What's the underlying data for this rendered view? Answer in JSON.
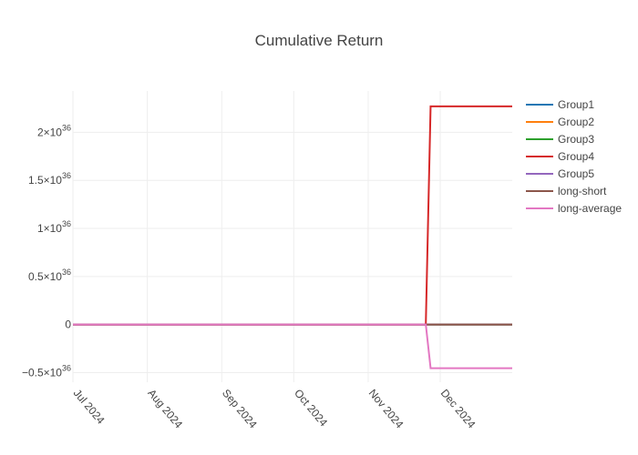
{
  "chart_data": {
    "type": "line",
    "title": "Cumulative Return",
    "xlabel": "",
    "ylabel": "",
    "x_ticks": [
      {
        "date": "2024-07-01",
        "label": "Jul 2024"
      },
      {
        "date": "2024-08-01",
        "label": "Aug 2024"
      },
      {
        "date": "2024-09-01",
        "label": "Sep 2024"
      },
      {
        "date": "2024-10-01",
        "label": "Oct 2024"
      },
      {
        "date": "2024-11-01",
        "label": "Nov 2024"
      },
      {
        "date": "2024-12-01",
        "label": "Dec 2024"
      }
    ],
    "y_ticks": [
      {
        "value": -5e+35,
        "base": "−0.5×10",
        "exp": "36"
      },
      {
        "value": 0,
        "base": "0",
        "exp": ""
      },
      {
        "value": 5e+35,
        "base": "0.5×10",
        "exp": "36"
      },
      {
        "value": 1e+36,
        "base": "1×10",
        "exp": "36"
      },
      {
        "value": 1.5e+36,
        "base": "1.5×10",
        "exp": "36"
      },
      {
        "value": 2e+36,
        "base": "2×10",
        "exp": "36"
      }
    ],
    "xlim": [
      "2024-07-01",
      "2024-12-31"
    ],
    "ylim": [
      -6e+35,
      2.43e+36
    ],
    "grid": true,
    "legend_position": "right",
    "series": [
      {
        "name": "Group1",
        "color": "#1f77b4",
        "points": [
          [
            "2024-07-01",
            0
          ],
          [
            "2024-11-25",
            0
          ],
          [
            "2024-12-31",
            0
          ]
        ]
      },
      {
        "name": "Group2",
        "color": "#ff7f0e",
        "points": [
          [
            "2024-07-01",
            0
          ],
          [
            "2024-11-25",
            0
          ],
          [
            "2024-12-31",
            0
          ]
        ]
      },
      {
        "name": "Group3",
        "color": "#2ca02c",
        "points": [
          [
            "2024-07-01",
            0
          ],
          [
            "2024-11-25",
            0
          ],
          [
            "2024-12-31",
            0
          ]
        ]
      },
      {
        "name": "Group4",
        "color": "#d62728",
        "points": [
          [
            "2024-07-01",
            0
          ],
          [
            "2024-11-25",
            0
          ],
          [
            "2024-11-27",
            2.27e+36
          ],
          [
            "2024-12-31",
            2.27e+36
          ]
        ]
      },
      {
        "name": "Group5",
        "color": "#9467bd",
        "points": [
          [
            "2024-07-01",
            0
          ],
          [
            "2024-11-25",
            0
          ],
          [
            "2024-12-31",
            0
          ]
        ]
      },
      {
        "name": "long-short",
        "color": "#8c564b",
        "points": [
          [
            "2024-07-01",
            0
          ],
          [
            "2024-11-25",
            0
          ],
          [
            "2024-12-31",
            0
          ]
        ]
      },
      {
        "name": "long-average",
        "color": "#e377c2",
        "points": [
          [
            "2024-07-01",
            0
          ],
          [
            "2024-11-25",
            0
          ],
          [
            "2024-11-27",
            -4.54e+35
          ],
          [
            "2024-12-31",
            -4.54e+35
          ]
        ]
      }
    ]
  }
}
